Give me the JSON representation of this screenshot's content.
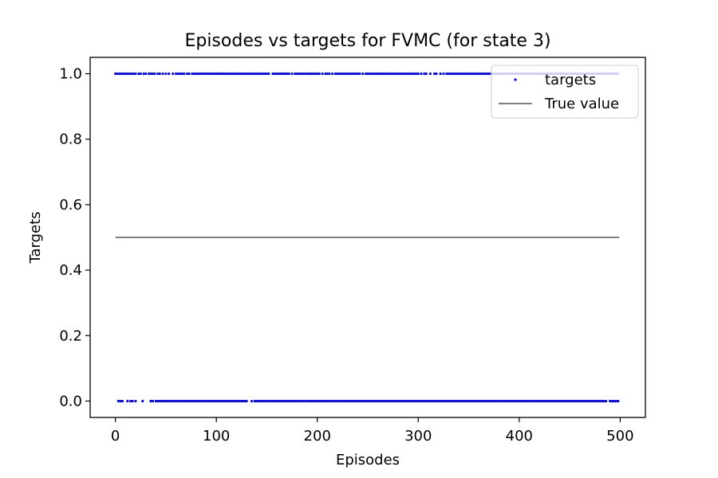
{
  "chart_data": {
    "type": "scatter",
    "title": "Episodes vs targets for FVMC (for state 3)",
    "xlabel": "Episodes",
    "ylabel": "Targets",
    "xlim": [
      -25,
      525
    ],
    "ylim": [
      -0.05,
      1.05
    ],
    "xticks": [
      0,
      100,
      200,
      300,
      400,
      500
    ],
    "xtick_labels": [
      "0",
      "100",
      "200",
      "300",
      "400",
      "500"
    ],
    "yticks": [
      0.0,
      0.2,
      0.4,
      0.6,
      0.8,
      1.0
    ],
    "ytick_labels": [
      "0.0",
      "0.2",
      "0.4",
      "0.6",
      "0.8",
      "1.0"
    ],
    "grid": false,
    "legend_position": "upper right",
    "series": [
      {
        "name": "targets",
        "kind": "scatter",
        "color": "#0000ff",
        "x_range": [
          0,
          499
        ],
        "y_levels": [
          0,
          1
        ],
        "points_y1_x": [
          0,
          2,
          4,
          6,
          8,
          10,
          12,
          14,
          16,
          18,
          20,
          23,
          25,
          28,
          30,
          33,
          35,
          37,
          39,
          42,
          44,
          47,
          50,
          53,
          57,
          60,
          62,
          64,
          66,
          68,
          71,
          73,
          76,
          78,
          80,
          82,
          84,
          86,
          88,
          90,
          92,
          94,
          96,
          98,
          100,
          102,
          104,
          106,
          108,
          110,
          112,
          114,
          116,
          118,
          120,
          122,
          124,
          126,
          128,
          130,
          132,
          134,
          136,
          138,
          140,
          142,
          144,
          146,
          148,
          150,
          152,
          156,
          158,
          160,
          162,
          164,
          166,
          168,
          170,
          172,
          175,
          178,
          180,
          182,
          184,
          186,
          188,
          190,
          192,
          194,
          196,
          198,
          200,
          202,
          205,
          208,
          210,
          212,
          215,
          218,
          220,
          222,
          224,
          226,
          228,
          230,
          232,
          234,
          236,
          238,
          240,
          242,
          245,
          248,
          250,
          252,
          254,
          256,
          258,
          260,
          262,
          264,
          266,
          268,
          270,
          272,
          274,
          276,
          278,
          280,
          282,
          284,
          286,
          288,
          290,
          292,
          294,
          296,
          298,
          300,
          303,
          306,
          308,
          312,
          316,
          318,
          322,
          325,
          328,
          330,
          332,
          334,
          336,
          338,
          340,
          342,
          344,
          346,
          348,
          350,
          352,
          354,
          356,
          358,
          360,
          362,
          364,
          366,
          368,
          370,
          372,
          374,
          376,
          378,
          380,
          382,
          384,
          386,
          388,
          390,
          392,
          394,
          396,
          398,
          400,
          402,
          404,
          406,
          408,
          410,
          412,
          414,
          416,
          418,
          420,
          422,
          424,
          426,
          428,
          430,
          432,
          434,
          436,
          438,
          440,
          442,
          444,
          446,
          448,
          450,
          452,
          454,
          456,
          458,
          460,
          462,
          464,
          466,
          468,
          470,
          472,
          474,
          476,
          478,
          480,
          482,
          484,
          486,
          488,
          490,
          492,
          494,
          496,
          498
        ],
        "points_y0_x": [
          3,
          5,
          7,
          12,
          15,
          17,
          20,
          27,
          35,
          37,
          40,
          42,
          44,
          46,
          48,
          50,
          52,
          54,
          56,
          58,
          60,
          62,
          64,
          66,
          68,
          70,
          72,
          74,
          76,
          78,
          80,
          82,
          84,
          86,
          88,
          90,
          92,
          94,
          96,
          98,
          100,
          102,
          104,
          106,
          108,
          110,
          112,
          114,
          116,
          118,
          120,
          122,
          124,
          126,
          128,
          130,
          135,
          138,
          140,
          142,
          144,
          146,
          148,
          150,
          152,
          154,
          156,
          158,
          160,
          162,
          164,
          166,
          168,
          170,
          172,
          174,
          176,
          178,
          180,
          182,
          184,
          186,
          188,
          190,
          192,
          194,
          196,
          198,
          200,
          202,
          204,
          206,
          208,
          210,
          212,
          214,
          216,
          218,
          220,
          222,
          224,
          226,
          228,
          230,
          232,
          234,
          236,
          238,
          240,
          242,
          244,
          246,
          248,
          250,
          252,
          254,
          256,
          258,
          260,
          262,
          264,
          266,
          268,
          270,
          272,
          274,
          276,
          278,
          280,
          282,
          284,
          286,
          288,
          290,
          292,
          294,
          296,
          298,
          300,
          302,
          304,
          306,
          308,
          310,
          312,
          314,
          316,
          318,
          320,
          322,
          324,
          326,
          328,
          330,
          332,
          334,
          336,
          338,
          340,
          342,
          344,
          346,
          348,
          350,
          352,
          354,
          356,
          358,
          360,
          362,
          364,
          366,
          368,
          370,
          372,
          374,
          376,
          378,
          380,
          382,
          384,
          386,
          388,
          390,
          392,
          394,
          396,
          398,
          400,
          402,
          404,
          406,
          408,
          410,
          412,
          414,
          416,
          418,
          420,
          422,
          424,
          426,
          428,
          430,
          432,
          434,
          436,
          438,
          440,
          442,
          444,
          446,
          448,
          450,
          452,
          454,
          456,
          458,
          460,
          462,
          464,
          466,
          468,
          470,
          472,
          474,
          476,
          478,
          480,
          482,
          484,
          486,
          490,
          492,
          494,
          496,
          498
        ]
      },
      {
        "name": "True value",
        "kind": "line",
        "color": "#000000",
        "x": [
          0,
          499
        ],
        "values": [
          0.5,
          0.5
        ]
      }
    ]
  }
}
